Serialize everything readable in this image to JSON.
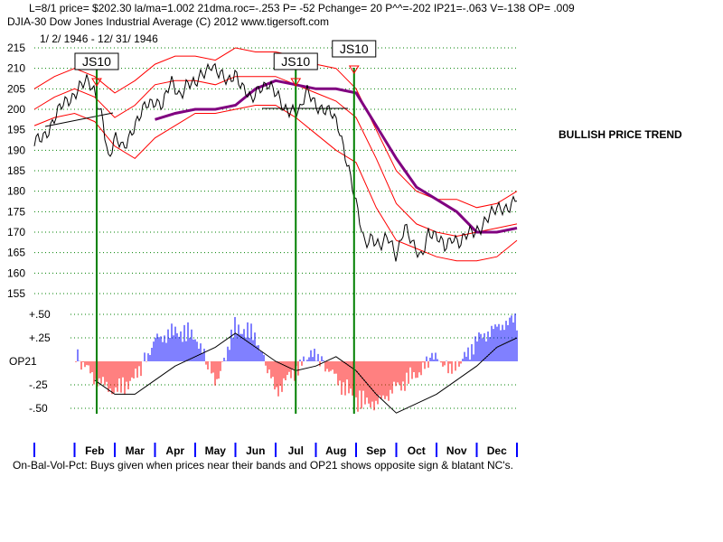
{
  "header": {
    "line1": "L=8/1  price= $202.30  la/ma=1.002 21dma.roc=-.253 P= -52 Pchange=  20 P^^=-202 IP21=-.063 V=-138 OP= .009",
    "line2": "DJIA-30  Dow Jones Industrial Average          (C) 2012 www.tigersoft.com",
    "date_range": "1/ 2/ 1946 - 12/ 31/ 1946"
  },
  "annotation": "BULLISH PRICE TREND",
  "footer": "On-Bal-Vol-Pct: Buys given when prices near their bands and OP21 shows opposite sign & blatant NC's.",
  "colors": {
    "price": "#000000",
    "bands": "#ff0000",
    "ma": "#800080",
    "grid": "#008000",
    "signal": "#008000",
    "pos_bar": "#0000ff",
    "neg_bar": "#ff0000"
  },
  "signals": [
    {
      "label": "JS10",
      "month_pos": 1.55
    },
    {
      "label": "JS10",
      "month_pos": 6.5
    },
    {
      "label": "JS10",
      "month_pos": 7.95
    }
  ],
  "chart_data": [
    {
      "type": "line",
      "title": "DJIA-30 Dow Jones Industrial Average 1946",
      "xlabel": "",
      "ylabel": "",
      "ylim": [
        155,
        215
      ],
      "yticks": [
        155,
        160,
        165,
        170,
        175,
        180,
        185,
        190,
        195,
        200,
        205,
        210,
        215
      ],
      "grid": true,
      "categories": [
        "Feb",
        "Mar",
        "Apr",
        "May",
        "Jun",
        "Jul",
        "Aug",
        "Sep",
        "Oct",
        "Nov",
        "Dec"
      ],
      "series": [
        {
          "name": "DJIA close",
          "x": [
            0,
            0.3,
            0.6,
            0.9,
            1.1,
            1.3,
            1.5,
            1.7,
            1.85,
            2.0,
            2.2,
            2.4,
            2.6,
            2.8,
            3.0,
            3.2,
            3.4,
            3.6,
            3.8,
            4.0,
            4.2,
            4.4,
            4.6,
            4.8,
            5.0,
            5.2,
            5.4,
            5.6,
            5.8,
            6.0,
            6.2,
            6.4,
            6.6,
            6.8,
            7.0,
            7.2,
            7.4,
            7.6,
            7.8,
            8.0,
            8.2,
            8.4,
            8.6,
            8.8,
            9.0,
            9.2,
            9.4,
            9.6,
            9.8,
            10.0,
            10.2,
            10.4,
            10.6,
            10.8,
            11.0,
            11.2,
            11.4,
            11.6,
            11.8,
            12.0
          ],
          "values": [
            191,
            195,
            199,
            203,
            206,
            206,
            204,
            199,
            187,
            192,
            191,
            195,
            197,
            201,
            203,
            201,
            206,
            204,
            207,
            205,
            209,
            212,
            208,
            206,
            210,
            205,
            201,
            206,
            207,
            203,
            200,
            201,
            199,
            204,
            202,
            200,
            198,
            195,
            187,
            176,
            167,
            170,
            166,
            168,
            165,
            172,
            166,
            164,
            171,
            168,
            166,
            170,
            167,
            169,
            171,
            173,
            174,
            176,
            177,
            178
          ]
        },
        {
          "name": "21-day moving average",
          "x": [
            3.0,
            3.5,
            4.0,
            4.5,
            5.0,
            5.5,
            6.0,
            6.5,
            7.0,
            7.5,
            8.0,
            8.5,
            9.0,
            9.5,
            10.0,
            10.5,
            11.0,
            11.5,
            12.0
          ],
          "values": [
            197.5,
            199,
            200,
            200,
            201,
            205,
            207,
            206,
            205,
            205,
            204,
            196,
            188,
            181,
            178,
            175,
            170,
            170,
            171
          ]
        },
        {
          "name": "upper band",
          "x": [
            0,
            0.5,
            1.0,
            1.5,
            2.0,
            2.5,
            3.0,
            3.5,
            4.0,
            4.5,
            5.0,
            5.5,
            6.0,
            6.5,
            7.0,
            7.5,
            8.0,
            8.5,
            9.0,
            9.5,
            10.0,
            10.5,
            11.0,
            11.5,
            12.0
          ],
          "values": [
            205,
            208,
            210,
            208,
            204,
            207,
            211,
            213,
            213,
            212,
            215,
            214,
            214,
            213,
            211,
            210,
            205,
            195,
            185,
            180,
            178,
            178,
            176,
            177,
            180
          ]
        },
        {
          "name": "middle band",
          "x": [
            0,
            0.5,
            1.0,
            1.5,
            2.0,
            2.5,
            3.0,
            3.5,
            4.0,
            4.5,
            5.0,
            5.5,
            6.0,
            6.5,
            7.0,
            7.5,
            8.0,
            8.5,
            9.0,
            9.5,
            10.0,
            10.5,
            11.0,
            11.5,
            12.0
          ],
          "values": [
            200,
            203,
            205,
            203,
            198,
            201,
            206,
            207,
            207,
            206,
            208,
            208,
            208,
            206,
            204,
            202,
            198,
            188,
            177,
            172,
            170,
            169,
            170,
            171,
            172
          ]
        },
        {
          "name": "lower band",
          "x": [
            0,
            0.5,
            1.0,
            1.5,
            2.0,
            2.5,
            3.0,
            3.5,
            4.0,
            4.5,
            5.0,
            5.5,
            6.0,
            6.5,
            7.0,
            7.5,
            8.0,
            8.5,
            9.0,
            9.5,
            10.0,
            10.5,
            11.0,
            11.5,
            12.0
          ],
          "values": [
            196,
            198,
            199,
            197,
            191,
            188,
            193,
            196,
            199,
            199,
            200,
            201,
            201,
            198,
            194,
            190,
            187,
            176,
            168,
            166,
            164,
            163,
            163,
            164,
            168
          ]
        }
      ]
    },
    {
      "type": "bar",
      "title": "OP21 On-Bal-Vol-Pct",
      "ylabel": "OP21",
      "ylim": [
        -0.55,
        0.55
      ],
      "yticks": [
        {
          "v": 0.5,
          "label": "+.50"
        },
        {
          "v": 0.25,
          "label": "+.25"
        },
        {
          "v": 0,
          "label": "OP21"
        },
        {
          "v": -0.25,
          "label": "-.25"
        },
        {
          "v": -0.5,
          "label": "-.50"
        }
      ],
      "x": [
        0,
        0.5,
        1.0,
        1.5,
        2.0,
        2.5,
        3.0,
        3.5,
        4.0,
        4.5,
        5.0,
        5.5,
        6.0,
        6.5,
        7.0,
        7.5,
        8.0,
        8.5,
        9.0,
        9.5,
        10.0,
        10.5,
        11.0,
        11.5,
        12.0
      ],
      "values": [
        0.3,
        0.45,
        0.1,
        -0.2,
        -0.35,
        -0.2,
        0.25,
        0.35,
        0.3,
        -0.25,
        0.4,
        0.3,
        -0.35,
        -0.1,
        0.1,
        -0.2,
        -0.45,
        -0.5,
        -0.3,
        -0.15,
        0.05,
        -0.1,
        0.25,
        0.4,
        0.5
      ],
      "series": [
        {
          "name": "OP21 line",
          "x": [
            1.5,
            2.0,
            2.5,
            3.0,
            3.5,
            4.0,
            4.5,
            5.0,
            5.5,
            6.0,
            6.5,
            7.0,
            7.5,
            8.0,
            8.5,
            9.0,
            9.5,
            10.0,
            10.5,
            11.0,
            11.5,
            12.0
          ],
          "values": [
            -0.2,
            -0.35,
            -0.35,
            -0.2,
            -0.05,
            0.05,
            0.15,
            0.3,
            0.15,
            0.0,
            -0.1,
            -0.05,
            0.05,
            -0.1,
            -0.35,
            -0.55,
            -0.45,
            -0.35,
            -0.2,
            -0.05,
            0.15,
            0.25
          ]
        }
      ]
    }
  ]
}
